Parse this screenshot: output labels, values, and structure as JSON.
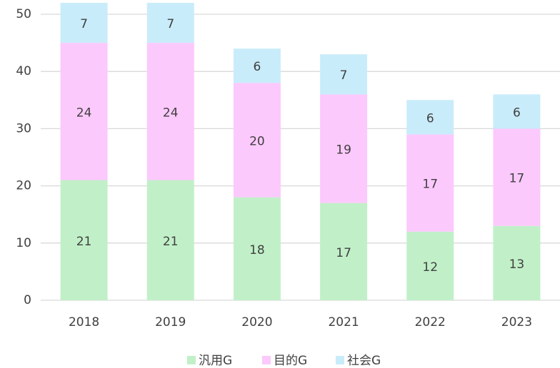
{
  "chart_data": {
    "type": "stacked_bar",
    "categories": [
      "2018",
      "2019",
      "2020",
      "2021",
      "2022",
      "2023"
    ],
    "series": [
      {
        "name": "汎用G",
        "color": "#c1f0c8",
        "values": [
          21,
          21,
          18,
          17,
          12,
          13
        ]
      },
      {
        "name": "目的G",
        "color": "#fcc9fc",
        "values": [
          24,
          24,
          20,
          19,
          17,
          17
        ]
      },
      {
        "name": "社会G",
        "color": "#c9ecfa",
        "values": [
          7,
          7,
          6,
          7,
          6,
          6
        ]
      }
    ],
    "ylim": [
      0,
      50
    ],
    "yticks": [
      0,
      10,
      20,
      30,
      40,
      50
    ],
    "grid": true,
    "legend": "bottom"
  }
}
